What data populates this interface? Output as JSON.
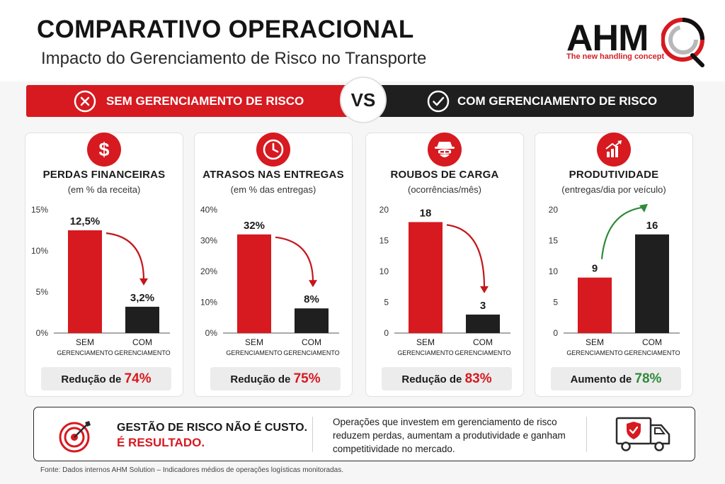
{
  "header": {
    "title": "COMPARATIVO OPERACIONAL",
    "subtitle": "Impacto do Gerenciamento de Risco no Transporte"
  },
  "logo": {
    "name": "AHM",
    "tagline": "The new handling concept"
  },
  "comparison_bar": {
    "left_label": "SEM GERENCIAMENTO DE RISCO",
    "vs": "VS",
    "right_label": "COM GERENCIAMENTO DE RISCO",
    "left_icon": "x-circle-icon",
    "right_icon": "check-circle-icon"
  },
  "colors": {
    "red": "#d71920",
    "dark": "#1f1f1f",
    "green": "#2f8a3a"
  },
  "cards": [
    {
      "icon": "dollar-icon",
      "title": "PERDAS FINANCEIRAS",
      "subtitle": "(em % da receita)",
      "result_prefix": "Redução de",
      "result_value": "74%"
    },
    {
      "icon": "clock-icon",
      "title": "ATRASOS NAS ENTREGAS",
      "subtitle": "(em % das entregas)",
      "result_prefix": "Redução de",
      "result_value": "75%"
    },
    {
      "icon": "thief-icon",
      "title": "ROUBOS DE CARGA",
      "subtitle": "(ocorrências/mês)",
      "result_prefix": "Redução de",
      "result_value": "83%"
    },
    {
      "icon": "growth-chart-icon",
      "title": "PRODUTIVIDADE",
      "subtitle": "(entregas/dia por veículo)",
      "result_prefix": "Aumento de",
      "result_value": "78%"
    }
  ],
  "chart_data": [
    {
      "type": "bar",
      "title": "PERDAS FINANCEIRAS",
      "subtitle": "(em % da receita)",
      "categories": [
        [
          "SEM",
          "GERENCIAMENTO"
        ],
        [
          "COM",
          "GERENCIAMENTO"
        ]
      ],
      "values": [
        12.5,
        3.2
      ],
      "value_labels": [
        "12,5%",
        "3,2%"
      ],
      "ylim": [
        0,
        15
      ],
      "yticks": [
        0,
        5,
        10,
        15
      ],
      "ytick_labels": [
        "0%",
        "5%",
        "10%",
        "15%"
      ],
      "bar_colors": [
        "#d71920",
        "#1f1f1f"
      ],
      "trend": "down"
    },
    {
      "type": "bar",
      "title": "ATRASOS NAS ENTREGAS",
      "subtitle": "(em % das entregas)",
      "categories": [
        [
          "SEM",
          "GERENCIAMENTO"
        ],
        [
          "COM",
          "GERENCIAMENTO"
        ]
      ],
      "values": [
        32,
        8
      ],
      "value_labels": [
        "32%",
        "8%"
      ],
      "ylim": [
        0,
        40
      ],
      "yticks": [
        0,
        10,
        20,
        30,
        40
      ],
      "ytick_labels": [
        "0%",
        "10%",
        "20%",
        "30%",
        "40%"
      ],
      "bar_colors": [
        "#d71920",
        "#1f1f1f"
      ],
      "trend": "down"
    },
    {
      "type": "bar",
      "title": "ROUBOS DE CARGA",
      "subtitle": "(ocorrências/mês)",
      "categories": [
        [
          "SEM",
          "GERENCIAMENTO"
        ],
        [
          "COM",
          "GERENCIAMENTO"
        ]
      ],
      "values": [
        18,
        3
      ],
      "value_labels": [
        "18",
        "3"
      ],
      "ylim": [
        0,
        20
      ],
      "yticks": [
        0,
        5,
        10,
        15,
        20
      ],
      "ytick_labels": [
        "0",
        "5",
        "10",
        "15",
        "20"
      ],
      "bar_colors": [
        "#d71920",
        "#1f1f1f"
      ],
      "trend": "down"
    },
    {
      "type": "bar",
      "title": "PRODUTIVIDADE",
      "subtitle": "(entregas/dia por veículo)",
      "categories": [
        [
          "SEM",
          "GERENCIAMENTO"
        ],
        [
          "COM",
          "GERENCIAMENTO"
        ]
      ],
      "values": [
        9,
        16
      ],
      "value_labels": [
        "9",
        "16"
      ],
      "ylim": [
        0,
        20
      ],
      "yticks": [
        0,
        5,
        10,
        15,
        20
      ],
      "ytick_labels": [
        "0",
        "5",
        "10",
        "15",
        "20"
      ],
      "bar_colors": [
        "#d71920",
        "#1f1f1f"
      ],
      "trend": "up"
    }
  ],
  "footer": {
    "line1": "GESTÃO DE RISCO NÃO É CUSTO.",
    "line2": "É RESULTADO.",
    "text": "Operações que investem em gerenciamento de risco reduzem perdas, aumentam a produtividade e ganham competitividade no mercado.",
    "left_icon": "target-icon",
    "right_icon": "truck-shield-icon"
  },
  "source": "Fonte: Dados internos AHM Solution – Indicadores médios de operações logísticas monitoradas."
}
